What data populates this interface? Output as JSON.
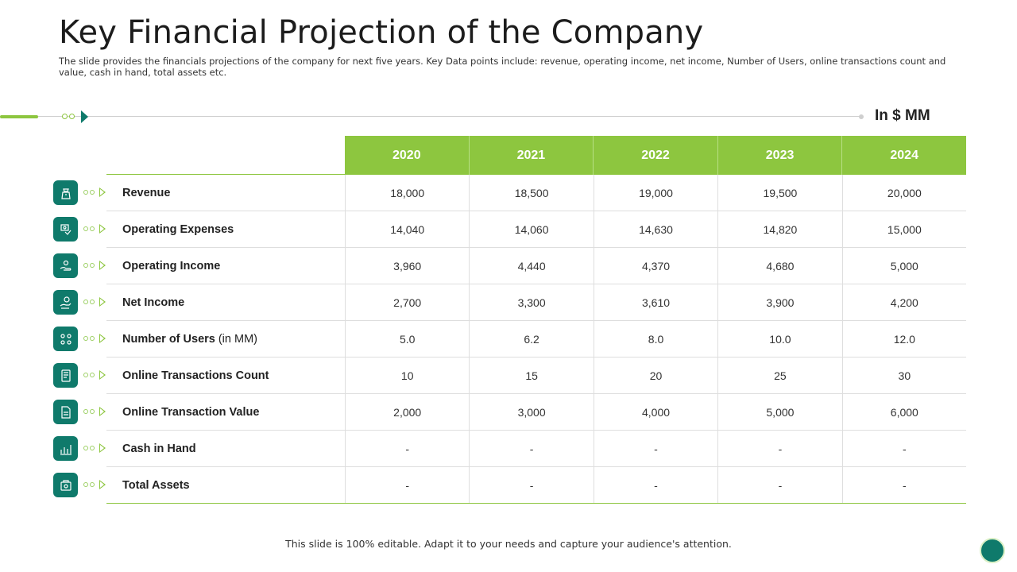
{
  "slide": {
    "title": "Key Financial Projection of the Company",
    "subtitle": "The slide provides the financials projections of the company for next five years. Key Data points include: revenue, operating income, net income, Number of Users, online transactions count and value, cash in hand, total assets etc.",
    "units": "In $ MM",
    "footer": "This slide is 100% editable. Adapt it to your needs and capture your audience's attention."
  },
  "colors": {
    "header_green": "#8dc63f",
    "icon_teal": "#0f7a6b"
  },
  "chart_data": {
    "type": "table",
    "columns": [
      "2020",
      "2021",
      "2022",
      "2023",
      "2024"
    ],
    "rows": [
      {
        "label": "Revenue",
        "unit": "",
        "icon": "money-bag-icon",
        "values": [
          "18,000",
          "18,500",
          "19,000",
          "19,500",
          "20,000"
        ]
      },
      {
        "label": "Operating Expenses",
        "unit": "",
        "icon": "expense-icon",
        "values": [
          "14,040",
          "14,060",
          "14,630",
          "14,820",
          "15,000"
        ]
      },
      {
        "label": "Operating Income",
        "unit": "",
        "icon": "hand-coin-icon",
        "values": [
          "3,960",
          "4,440",
          "4,370",
          "4,680",
          "5,000"
        ]
      },
      {
        "label": "Net Income",
        "unit": "",
        "icon": "coin-hand-icon",
        "values": [
          "2,700",
          "3,300",
          "3,610",
          "3,900",
          "4,200"
        ]
      },
      {
        "label": "Number of Users",
        "unit": "(in MM)",
        "icon": "users-icon",
        "values": [
          "5.0",
          "6.2",
          "8.0",
          "10.0",
          "12.0"
        ]
      },
      {
        "label": "Online Transactions Count",
        "unit": "",
        "icon": "device-icon",
        "values": [
          "10",
          "15",
          "20",
          "25",
          "30"
        ]
      },
      {
        "label": "Online Transaction Value",
        "unit": "",
        "icon": "document-icon",
        "values": [
          "2,000",
          "3,000",
          "4,000",
          "5,000",
          "6,000"
        ]
      },
      {
        "label": "Cash in Hand",
        "unit": "",
        "icon": "cash-chart-icon",
        "values": [
          "-",
          "-",
          "-",
          "-",
          "-"
        ]
      },
      {
        "label": "Total Assets",
        "unit": "",
        "icon": "assets-icon",
        "values": [
          "-",
          "-",
          "-",
          "-",
          "-"
        ]
      }
    ]
  }
}
